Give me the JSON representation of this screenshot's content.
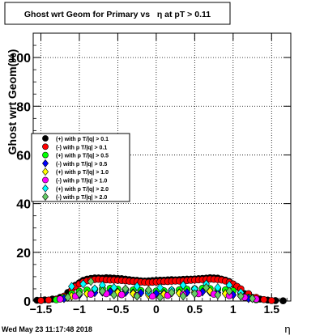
{
  "title": "Ghost wrt Geom for Primary vs   η at pT > 0.11",
  "footer": {
    "timestamp": "Wed May 23 11:17:48 2018"
  },
  "colors": {
    "black": "#000000",
    "red": "#ff0000",
    "green": "#00ff00",
    "blue": "#0000ff",
    "yellow": "#ffff00",
    "magenta": "#ff00ff",
    "cyan": "#00ffff",
    "mediumgreen": "#66cc66"
  },
  "chart_data": {
    "type": "scatter",
    "title": "Ghost wrt Geom for Primary vs   η at pT > 0.11",
    "xlabel": "η",
    "ylabel": "Ghost wrt Geom(%)",
    "xlim": [
      -1.6,
      1.75
    ],
    "ylim": [
      0,
      110
    ],
    "grid": true,
    "legend_placement": "left",
    "x_ticks": [
      {
        "value": -1.5,
        "label": "−1.5"
      },
      {
        "value": -1,
        "label": "−1"
      },
      {
        "value": -0.5,
        "label": "−0.5"
      },
      {
        "value": 0,
        "label": "0"
      },
      {
        "value": 0.5,
        "label": "0.5"
      },
      {
        "value": 1,
        "label": "1"
      },
      {
        "value": 1.5,
        "label": "1.5"
      }
    ],
    "y_ticks": [
      {
        "value": 0,
        "label": "0"
      },
      {
        "value": 20,
        "label": "20"
      },
      {
        "value": 40,
        "label": "40"
      },
      {
        "value": 60,
        "label": "60"
      },
      {
        "value": 80,
        "label": "80"
      },
      {
        "value": 100,
        "label": "100"
      }
    ],
    "series": [
      {
        "name": "(+) with p T/|q| > 0.1",
        "color": "#000000",
        "marker": "circle",
        "x": [
          -1.55,
          -1.5,
          -1.45,
          -1.35,
          -1.25,
          -1.15,
          -1.05,
          -1.0,
          -0.95,
          -0.9,
          -0.85,
          -0.8,
          -0.75,
          -0.7,
          -0.65,
          -0.6,
          -0.55,
          -0.5,
          -0.45,
          -0.4,
          -0.35,
          -0.3,
          -0.25,
          -0.2,
          -0.15,
          -0.1,
          -0.05,
          0.0,
          0.05,
          0.1,
          0.15,
          0.2,
          0.25,
          0.3,
          0.35,
          0.4,
          0.45,
          0.5,
          0.55,
          0.6,
          0.65,
          0.7,
          0.75,
          0.8,
          0.85,
          0.9,
          0.95,
          1.0,
          1.05,
          1.1,
          1.15,
          1.25,
          1.35,
          1.45,
          1.55,
          1.65
        ],
        "y": [
          0.3,
          0.3,
          0.5,
          0.8,
          1.5,
          3.5,
          6.5,
          7.5,
          8.5,
          9.0,
          9.3,
          9.5,
          9.5,
          9.4,
          9.6,
          9.5,
          9.4,
          9.3,
          9.2,
          9.0,
          8.8,
          8.6,
          8.5,
          8.3,
          8.2,
          8.3,
          8.4,
          8.5,
          8.6,
          8.6,
          8.7,
          8.8,
          8.7,
          8.8,
          8.9,
          9.0,
          9.0,
          9.1,
          9.2,
          9.3,
          9.4,
          9.6,
          9.5,
          9.4,
          9.0,
          8.6,
          8.0,
          7.0,
          6.0,
          4.5,
          3.0,
          1.5,
          0.8,
          0.4,
          0.2,
          0.1
        ]
      },
      {
        "name": "(-) with p T/|q| > 0.1",
        "color": "#ff0000",
        "marker": "circle",
        "x": [
          -1.5,
          -1.4,
          -1.3,
          -1.2,
          -1.1,
          -1.05,
          -1.0,
          -0.95,
          -0.9,
          -0.85,
          -0.8,
          -0.75,
          -0.7,
          -0.65,
          -0.6,
          -0.55,
          -0.5,
          -0.45,
          -0.4,
          -0.35,
          -0.3,
          -0.25,
          -0.2,
          -0.15,
          -0.1,
          -0.05,
          0.0,
          0.05,
          0.1,
          0.15,
          0.2,
          0.25,
          0.3,
          0.35,
          0.4,
          0.45,
          0.5,
          0.55,
          0.6,
          0.65,
          0.7,
          0.75,
          0.8,
          0.85,
          0.9,
          0.95,
          1.0,
          1.05,
          1.1,
          1.2,
          1.3,
          1.4,
          1.5
        ],
        "y": [
          0.2,
          0.4,
          0.8,
          2.0,
          4.5,
          6.0,
          7.0,
          7.8,
          8.3,
          8.6,
          8.8,
          8.9,
          8.8,
          8.7,
          8.6,
          8.6,
          8.5,
          8.4,
          8.3,
          8.1,
          8.0,
          7.9,
          7.8,
          7.7,
          7.6,
          7.7,
          7.8,
          7.9,
          8.0,
          8.0,
          8.1,
          8.2,
          8.2,
          8.3,
          8.4,
          8.5,
          8.6,
          8.7,
          8.8,
          8.9,
          9.0,
          8.9,
          8.8,
          8.6,
          8.2,
          7.7,
          7.0,
          6.0,
          5.0,
          3.0,
          1.5,
          0.6,
          0.2
        ]
      },
      {
        "name": "(+) with p T/|q| > 0.5",
        "color": "#00ff00",
        "marker": "circle",
        "x": [
          -1.3,
          -1.2,
          -1.1,
          -1.0,
          -0.9,
          -0.8,
          -0.7,
          -0.6,
          -0.5,
          -0.4,
          -0.3,
          -0.2,
          -0.1,
          0.0,
          0.1,
          0.2,
          0.3,
          0.4,
          0.5,
          0.6,
          0.7,
          0.8,
          0.9,
          1.0,
          1.1,
          1.2,
          1.3
        ],
        "y": [
          0.5,
          1.5,
          3.0,
          4.0,
          4.5,
          4.8,
          5.0,
          5.2,
          4.9,
          4.7,
          4.5,
          4.3,
          4.2,
          4.1,
          4.2,
          4.4,
          4.6,
          4.8,
          5.0,
          5.2,
          5.1,
          4.9,
          4.6,
          4.2,
          3.0,
          1.5,
          0.5
        ]
      },
      {
        "name": "(-) with p T/|q| > 0.5",
        "color": "#0000ff",
        "marker": "diamond",
        "x": [
          -1.2,
          -1.0,
          -0.9,
          -0.8,
          -0.7,
          -0.6,
          -0.5,
          -0.4,
          -0.3,
          -0.2,
          -0.1,
          0.0,
          0.1,
          0.2,
          0.3,
          0.4,
          0.5,
          0.6,
          0.7,
          0.8,
          0.9,
          1.0,
          1.2
        ],
        "y": [
          1.0,
          2.5,
          3.0,
          3.4,
          3.6,
          3.8,
          3.7,
          3.5,
          3.4,
          3.3,
          3.2,
          3.1,
          3.2,
          3.3,
          3.4,
          3.5,
          3.6,
          3.7,
          3.6,
          3.4,
          3.1,
          2.5,
          1.0
        ]
      },
      {
        "name": "(+) with p T/|q| > 1.0",
        "color": "#ffff00",
        "marker": "diamond",
        "x": [
          -1.1,
          -0.9,
          -0.7,
          -0.5,
          -0.3,
          -0.1,
          0.1,
          0.3,
          0.5,
          0.7,
          0.9,
          1.1
        ],
        "y": [
          2.0,
          3.0,
          4.0,
          3.5,
          3.0,
          2.5,
          2.8,
          3.2,
          3.6,
          4.0,
          3.0,
          2.0
        ]
      },
      {
        "name": "(-) with p T/|q| > 1.0",
        "color": "#ff00ff",
        "marker": "circle",
        "x": [
          -1.25,
          -1.05,
          -0.85,
          -0.65,
          -0.45,
          -0.25,
          -0.05,
          0.15,
          0.35,
          0.55,
          0.75,
          0.95,
          1.15,
          1.3
        ],
        "y": [
          0.8,
          2.0,
          2.8,
          3.0,
          2.6,
          2.2,
          2.0,
          2.3,
          2.7,
          3.0,
          2.8,
          2.2,
          1.5,
          0.8
        ]
      },
      {
        "name": "(+) with p T/|q| > 2.0",
        "color": "#00ffff",
        "marker": "diamond",
        "x": [
          -1.1,
          -0.95,
          -0.8,
          -0.7,
          -0.55,
          -0.4,
          -0.25,
          -0.1,
          0.05,
          0.2,
          0.35,
          0.5,
          0.65,
          0.8,
          0.95,
          1.1
        ],
        "y": [
          6.0,
          7.0,
          5.0,
          6.5,
          5.5,
          4.5,
          6.0,
          3.5,
          5.5,
          4.5,
          6.5,
          5.0,
          7.0,
          5.5,
          6.5,
          3.5
        ]
      },
      {
        "name": "(-) with p T/|q| > 2.0",
        "color": "#66cc66",
        "marker": "diamond",
        "x": [
          -1.15,
          -1.0,
          -0.85,
          -0.7,
          -0.55,
          -0.4,
          -0.25,
          -0.1,
          0.05,
          0.2,
          0.35,
          0.5,
          0.65,
          0.8,
          0.95,
          1.1,
          1.25
        ],
        "y": [
          1.5,
          3.0,
          8.0,
          4.0,
          2.5,
          5.0,
          2.0,
          4.5,
          1.5,
          3.5,
          2.0,
          3.0,
          5.5,
          2.5,
          4.0,
          2.0,
          1.0
        ]
      }
    ]
  }
}
